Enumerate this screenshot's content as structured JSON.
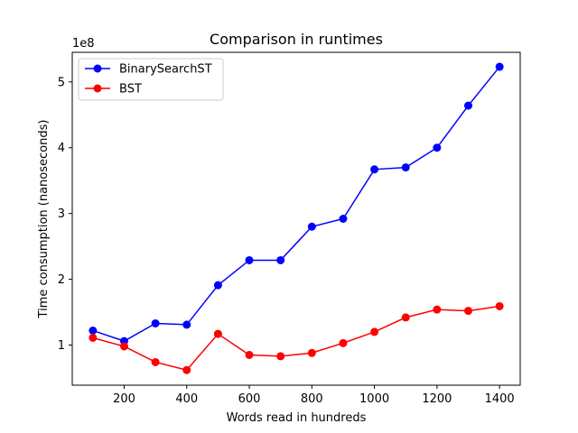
{
  "chart_data": {
    "type": "line",
    "title": "Comparison in runtimes",
    "xlabel": "Words read in hundreds",
    "ylabel": "Time consumption (nanoseconds)",
    "y_multiplier_label": "1e8",
    "x": [
      100,
      200,
      300,
      400,
      500,
      600,
      700,
      800,
      900,
      1000,
      1100,
      1200,
      1300,
      1400
    ],
    "xlim": [
      34,
      1466
    ],
    "ylim": [
      0.39,
      5.45
    ],
    "xticks": [
      200,
      400,
      600,
      800,
      1000,
      1200,
      1400
    ],
    "yticks": [
      1,
      2,
      3,
      4,
      5
    ],
    "legend_position": "upper-left",
    "grid": false,
    "series": [
      {
        "name": "BinarySearchST",
        "color": "#0000ff",
        "values": [
          1.22,
          1.06,
          1.33,
          1.31,
          1.91,
          2.29,
          2.29,
          2.8,
          2.92,
          3.67,
          3.7,
          4.0,
          4.64,
          5.23
        ]
      },
      {
        "name": "BST",
        "color": "#ff0000",
        "values": [
          1.11,
          0.98,
          0.74,
          0.62,
          1.17,
          0.85,
          0.83,
          0.88,
          1.03,
          1.2,
          1.42,
          1.54,
          1.52,
          1.59
        ]
      }
    ]
  }
}
